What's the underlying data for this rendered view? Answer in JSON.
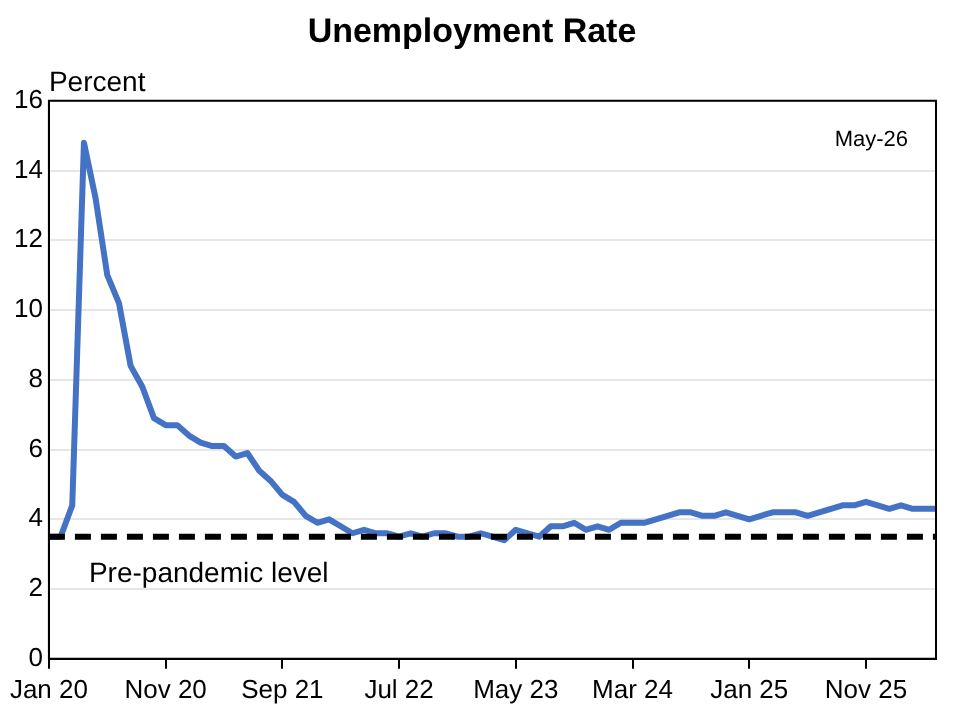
{
  "chart_data": {
    "type": "line",
    "title": "Unemployment Rate",
    "ylabel": "Percent",
    "annotations": [
      "May-26"
    ],
    "categories": [
      "Jan 20",
      null,
      null,
      null,
      null,
      null,
      null,
      null,
      null,
      null,
      "Nov 20",
      null,
      null,
      null,
      null,
      null,
      null,
      null,
      null,
      null,
      "Sep 21",
      null,
      null,
      null,
      null,
      null,
      null,
      null,
      null,
      null,
      "Jul 22",
      null,
      null,
      null,
      null,
      null,
      null,
      null,
      null,
      null,
      "May 23",
      null,
      null,
      null,
      null,
      null,
      null,
      null,
      null,
      null,
      "Mar 24",
      null,
      null,
      null,
      null,
      null,
      null,
      null,
      null,
      null,
      "Jan 25",
      null,
      null,
      null,
      null,
      null,
      null,
      null,
      null,
      null,
      "Nov 25",
      null,
      null,
      null,
      null,
      null,
      null
    ],
    "series": [
      {
        "color": "#4472c4",
        "values": [
          3.5,
          3.5,
          4.4,
          14.8,
          13.2,
          11.0,
          10.2,
          8.4,
          7.8,
          6.9,
          6.7,
          6.7,
          6.4,
          6.2,
          6.1,
          6.1,
          5.8,
          5.9,
          5.4,
          5.1,
          4.7,
          4.5,
          4.1,
          3.9,
          4.0,
          3.8,
          3.6,
          3.7,
          3.6,
          3.6,
          3.5,
          3.6,
          3.5,
          3.6,
          3.6,
          3.5,
          3.5,
          3.6,
          3.5,
          3.4,
          3.7,
          3.6,
          3.5,
          3.8,
          3.8,
          3.9,
          3.7,
          3.8,
          3.7,
          3.9,
          3.9,
          3.9,
          4.0,
          4.1,
          4.2,
          4.2,
          4.1,
          4.1,
          4.2,
          4.1,
          4.0,
          4.1,
          4.2,
          4.2,
          4.2,
          4.1,
          4.2,
          4.3,
          4.4,
          4.4,
          4.5,
          4.4,
          4.3,
          4.4,
          4.3,
          4.3,
          4.3
        ]
      }
    ],
    "ylim": [
      0,
      16
    ],
    "yticks": [
      0,
      2,
      4,
      6,
      8,
      10,
      12,
      14,
      16
    ],
    "grid": "y",
    "legend": false,
    "marker": "none",
    "line_style": "solid",
    "ref_lines": [
      {
        "axis": "y",
        "value": 3.5,
        "label": "Pre-pandemic level",
        "color": "#000000",
        "line_style": "dashed"
      }
    ]
  }
}
